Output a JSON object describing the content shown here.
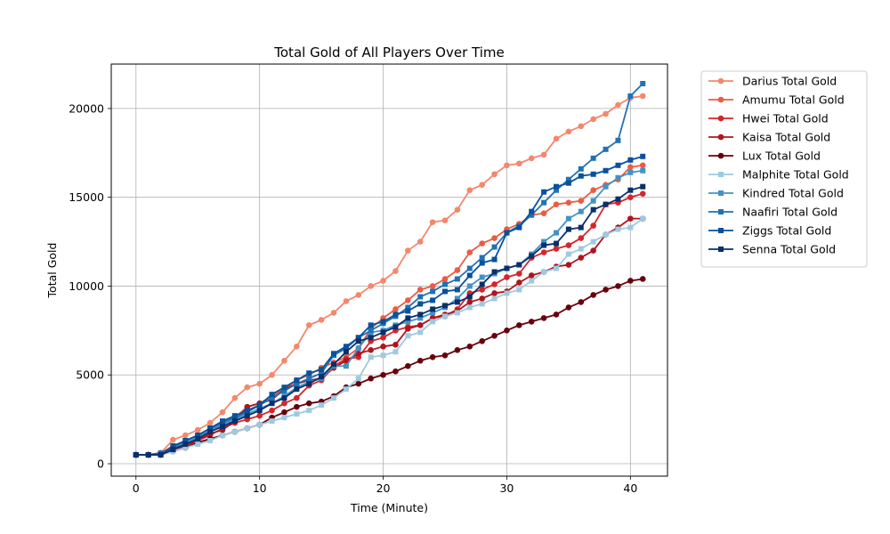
{
  "chart_data": {
    "type": "line",
    "title": "Total Gold of All Players Over Time",
    "xlabel": "Time (Minute)",
    "ylabel": "Total Gold",
    "xlim": [
      -2,
      43
    ],
    "ylim": [
      -700,
      22500
    ],
    "xticks": [
      0,
      10,
      20,
      30,
      40
    ],
    "yticks": [
      0,
      5000,
      10000,
      15000,
      20000
    ],
    "grid": true,
    "legend": "outside-right",
    "x": [
      0,
      1,
      2,
      3,
      4,
      5,
      6,
      7,
      8,
      9,
      10,
      11,
      12,
      13,
      14,
      15,
      16,
      17,
      18,
      19,
      20,
      21,
      22,
      23,
      24,
      25,
      26,
      27,
      28,
      29,
      30,
      31,
      32,
      33,
      34,
      35,
      36,
      37,
      38,
      39,
      40,
      41
    ],
    "series": [
      {
        "name": "Darius Total Gold",
        "color": "#f4876c",
        "marker": "circle",
        "values": [
          500,
          500,
          600,
          1350,
          1600,
          1900,
          2300,
          2900,
          3700,
          4300,
          4500,
          5000,
          5800,
          6600,
          7800,
          8100,
          8500,
          9150,
          9500,
          10000,
          10300,
          10850,
          12000,
          12500,
          13600,
          13700,
          14300,
          15400,
          15700,
          16300,
          16800,
          16900,
          17200,
          17400,
          18300,
          18700,
          19000,
          19400,
          19700,
          20200,
          20600,
          20700
        ]
      },
      {
        "name": "Amumu Total Gold",
        "color": "#ec5b45",
        "marker": "circle",
        "values": [
          500,
          500,
          600,
          1000,
          1200,
          1500,
          1900,
          2300,
          2600,
          3200,
          3400,
          3800,
          4200,
          4700,
          5000,
          5400,
          5700,
          6000,
          6500,
          7600,
          8200,
          8700,
          9200,
          9800,
          10000,
          10400,
          10900,
          11900,
          12400,
          12700,
          13200,
          13500,
          14000,
          14100,
          14600,
          14700,
          14800,
          15400,
          15700,
          16000,
          16700,
          16800
        ]
      },
      {
        "name": "Hwei Total Gold",
        "color": "#d4262c",
        "marker": "circle",
        "values": [
          500,
          500,
          600,
          900,
          1100,
          1300,
          1600,
          2000,
          2300,
          2500,
          2700,
          3000,
          3400,
          3700,
          4400,
          4700,
          5500,
          5900,
          6000,
          6900,
          7100,
          7500,
          7700,
          7800,
          8200,
          8300,
          8700,
          9600,
          9800,
          10100,
          10500,
          10700,
          11600,
          11900,
          12100,
          12300,
          12700,
          13400,
          14600,
          14700,
          15000,
          15200
        ]
      },
      {
        "name": "Kaisa Total Gold",
        "color": "#b0141c",
        "marker": "circle",
        "values": [
          500,
          500,
          500,
          800,
          1000,
          1300,
          1700,
          1900,
          2400,
          3200,
          3400,
          3600,
          4200,
          4500,
          4700,
          4800,
          5400,
          5800,
          6200,
          6400,
          6600,
          6700,
          7600,
          7800,
          8200,
          8400,
          8600,
          9100,
          9300,
          9600,
          9700,
          10200,
          10600,
          10800,
          11100,
          11200,
          11600,
          12000,
          12900,
          13300,
          13800,
          13800
        ]
      },
      {
        "name": "Lux Total Gold",
        "color": "#67000d",
        "marker": "circle",
        "values": [
          500,
          500,
          500,
          700,
          900,
          1200,
          1400,
          1600,
          1800,
          2000,
          2200,
          2600,
          2900,
          3200,
          3400,
          3500,
          3800,
          4300,
          4500,
          4800,
          5000,
          5200,
          5500,
          5800,
          6000,
          6100,
          6400,
          6600,
          6900,
          7200,
          7500,
          7800,
          8000,
          8200,
          8400,
          8800,
          9100,
          9500,
          9800,
          10000,
          10300,
          10400
        ]
      },
      {
        "name": "Malphite Total Gold",
        "color": "#9ecae1",
        "marker": "square",
        "values": [
          500,
          500,
          500,
          700,
          900,
          1100,
          1300,
          1600,
          1800,
          2000,
          2200,
          2400,
          2600,
          2800,
          3000,
          3300,
          3700,
          4200,
          4800,
          6000,
          6100,
          6300,
          7200,
          7400,
          8000,
          8300,
          8500,
          8800,
          9000,
          9300,
          9600,
          9800,
          10300,
          10800,
          11000,
          11800,
          12100,
          12500,
          12900,
          13200,
          13300,
          13800
        ]
      },
      {
        "name": "Kindred Total Gold",
        "color": "#4292c6",
        "marker": "square",
        "values": [
          500,
          500,
          500,
          900,
          1200,
          1500,
          1900,
          2200,
          2500,
          2800,
          3100,
          3400,
          3800,
          4300,
          4600,
          4800,
          5500,
          5500,
          6500,
          7400,
          7500,
          7800,
          8000,
          8200,
          8500,
          8800,
          9300,
          10000,
          10500,
          10700,
          11000,
          11200,
          11800,
          12500,
          13000,
          13800,
          14200,
          14800,
          15600,
          16100,
          16400,
          16500
        ]
      },
      {
        "name": "Naafiri Total Gold",
        "color": "#2171b5",
        "marker": "square",
        "values": [
          500,
          500,
          600,
          900,
          1300,
          1600,
          2000,
          2300,
          2600,
          2900,
          3300,
          3700,
          4100,
          4500,
          4800,
          5100,
          6100,
          6500,
          7100,
          7500,
          7900,
          8300,
          8800,
          9400,
          9700,
          10100,
          10400,
          11000,
          11600,
          12200,
          13000,
          13400,
          14000,
          14700,
          15400,
          16000,
          16600,
          17200,
          17700,
          18200,
          20700,
          21400
        ]
      },
      {
        "name": "Ziggs Total Gold",
        "color": "#08519c",
        "marker": "square",
        "values": [
          500,
          500,
          500,
          1000,
          1300,
          1600,
          2000,
          2400,
          2700,
          3000,
          3300,
          3900,
          4300,
          4700,
          5100,
          5300,
          6200,
          6600,
          7100,
          7800,
          8000,
          8400,
          8600,
          9000,
          9200,
          9700,
          9800,
          10600,
          11300,
          11500,
          13000,
          13300,
          14200,
          15300,
          15600,
          15800,
          16200,
          16300,
          16500,
          16800,
          17100,
          17300
        ]
      },
      {
        "name": "Senna Total Gold",
        "color": "#08306b",
        "marker": "square",
        "values": [
          500,
          500,
          500,
          800,
          1100,
          1400,
          1800,
          2100,
          2400,
          2700,
          3000,
          3400,
          3700,
          4200,
          4500,
          4900,
          5600,
          6300,
          6900,
          7100,
          7400,
          7700,
          8200,
          8400,
          8700,
          8900,
          9100,
          9400,
          10100,
          10800,
          11000,
          11200,
          11700,
          12300,
          12400,
          13200,
          13300,
          14300,
          14600,
          14900,
          15400,
          15600
        ]
      }
    ]
  }
}
